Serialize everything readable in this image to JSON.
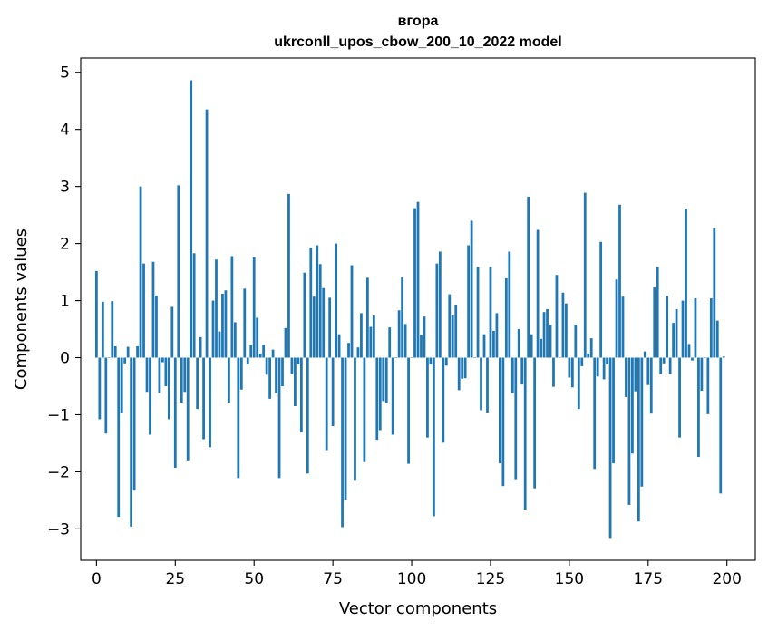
{
  "chart_data": {
    "type": "bar",
    "title_line1": "вгора",
    "title_line2": "ukrconll_upos_cbow_200_10_2022 model",
    "xlabel": "Vector components",
    "ylabel": "Components values",
    "xlim": [
      -5,
      209
    ],
    "ylim": [
      -3.55,
      5.25
    ],
    "xticks": [
      0,
      25,
      50,
      75,
      100,
      125,
      150,
      175,
      200
    ],
    "yticks": [
      -3,
      -2,
      -1,
      0,
      1,
      2,
      3,
      4,
      5
    ],
    "ytick_labels": [
      "−3",
      "−2",
      "−1",
      "0",
      "1",
      "2",
      "3",
      "4",
      "5"
    ],
    "grid": false,
    "bar_color": "#1f77b4",
    "x": [
      0,
      1,
      2,
      3,
      4,
      5,
      6,
      7,
      8,
      9,
      10,
      11,
      12,
      13,
      14,
      15,
      16,
      17,
      18,
      19,
      20,
      21,
      22,
      23,
      24,
      25,
      26,
      27,
      28,
      29,
      30,
      31,
      32,
      33,
      34,
      35,
      36,
      37,
      38,
      39,
      40,
      41,
      42,
      43,
      44,
      45,
      46,
      47,
      48,
      49,
      50,
      51,
      52,
      53,
      54,
      55,
      56,
      57,
      58,
      59,
      60,
      61,
      62,
      63,
      64,
      65,
      66,
      67,
      68,
      69,
      70,
      71,
      72,
      73,
      74,
      75,
      76,
      77,
      78,
      79,
      80,
      81,
      82,
      83,
      84,
      85,
      86,
      87,
      88,
      89,
      90,
      91,
      92,
      93,
      94,
      95,
      96,
      97,
      98,
      99,
      100,
      101,
      102,
      103,
      104,
      105,
      106,
      107,
      108,
      109,
      110,
      111,
      112,
      113,
      114,
      115,
      116,
      117,
      118,
      119,
      120,
      121,
      122,
      123,
      124,
      125,
      126,
      127,
      128,
      129,
      130,
      131,
      132,
      133,
      134,
      135,
      136,
      137,
      138,
      139,
      140,
      141,
      142,
      143,
      144,
      145,
      146,
      147,
      148,
      149,
      150,
      151,
      152,
      153,
      154,
      155,
      156,
      157,
      158,
      159,
      160,
      161,
      162,
      163,
      164,
      165,
      166,
      167,
      168,
      169,
      170,
      171,
      172,
      173,
      174,
      175,
      176,
      177,
      178,
      179,
      180,
      181,
      182,
      183,
      184,
      185,
      186,
      187,
      188,
      189,
      190,
      191,
      192,
      193,
      194,
      195,
      196,
      197,
      198,
      199
    ],
    "values": [
      1.52,
      -1.08,
      0.98,
      -1.33,
      0.0,
      0.99,
      0.2,
      -2.79,
      -0.97,
      -0.1,
      0.19,
      -2.96,
      -2.33,
      0.2,
      3.0,
      1.65,
      -0.6,
      -1.35,
      1.68,
      1.09,
      -0.62,
      -0.08,
      -0.5,
      -1.08,
      0.89,
      -1.93,
      3.02,
      -0.79,
      -0.6,
      -1.8,
      4.86,
      1.83,
      -0.9,
      0.36,
      -1.43,
      4.35,
      -1.57,
      1.0,
      1.72,
      0.46,
      1.12,
      1.18,
      -0.79,
      1.78,
      0.62,
      -2.11,
      -0.56,
      1.21,
      -0.12,
      0.22,
      1.76,
      0.7,
      0.07,
      0.23,
      -0.3,
      -0.72,
      0.14,
      -0.62,
      -2.11,
      -0.5,
      0.52,
      2.87,
      -0.29,
      -0.85,
      -0.12,
      -1.31,
      1.49,
      -2.03,
      1.93,
      1.07,
      1.97,
      1.64,
      1.22,
      -1.62,
      1.05,
      -1.2,
      2.0,
      0.41,
      -2.97,
      -2.49,
      0.26,
      1.62,
      -2.14,
      0.18,
      0.78,
      -1.83,
      1.4,
      0.54,
      0.74,
      -1.44,
      -1.27,
      -0.76,
      -0.8,
      0.53,
      -1.35,
      0.0,
      0.83,
      1.41,
      0.59,
      -1.86,
      0.0,
      2.62,
      2.73,
      0.4,
      0.72,
      -1.4,
      -0.12,
      -2.78,
      1.65,
      1.86,
      -1.49,
      -0.14,
      1.11,
      0.74,
      0.93,
      -0.57,
      -0.37,
      -0.36,
      1.97,
      2.4,
      0.0,
      1.59,
      -0.92,
      0.41,
      -0.96,
      1.59,
      0.47,
      0.78,
      -1.85,
      -2.25,
      1.39,
      1.86,
      -0.62,
      -2.13,
      0.5,
      -0.47,
      -2.66,
      2.82,
      0.41,
      -2.29,
      2.24,
      0.33,
      0.8,
      0.85,
      0.58,
      -0.51,
      1.45,
      0.0,
      1.14,
      0.95,
      -0.35,
      -0.52,
      0.58,
      -0.9,
      -0.15,
      2.89,
      0.07,
      0.34,
      -1.95,
      -0.33,
      2.03,
      -0.38,
      -0.12,
      -3.16,
      -1.85,
      1.37,
      2.68,
      1.07,
      -0.69,
      -2.58,
      -1.68,
      -0.59,
      -2.87,
      -2.26,
      0.11,
      -0.48,
      -0.98,
      1.23,
      1.59,
      -0.29,
      -0.1,
      1.08,
      -0.28,
      0.61,
      0.85,
      -1.4,
      1.0,
      2.61,
      0.24,
      -0.05,
      1.04,
      -1.74,
      -0.58,
      0.0,
      -0.99,
      1.04,
      2.27,
      0.65,
      -2.38,
      0.02
    ]
  }
}
